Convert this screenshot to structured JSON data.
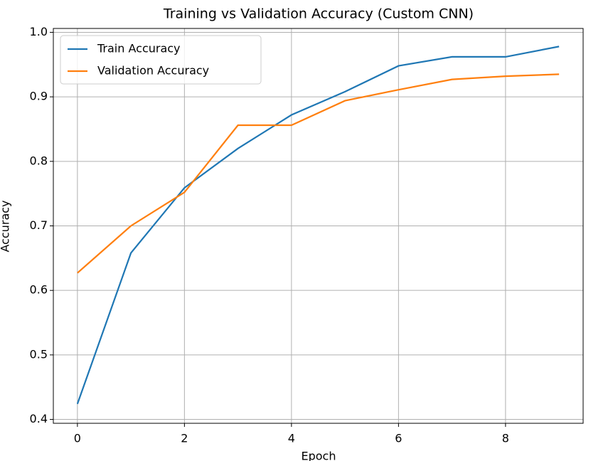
{
  "chart_data": {
    "type": "line",
    "title": "Training vs Validation Accuracy (Custom CNN)",
    "x_label": "Epoch",
    "y_label": "Accuracy",
    "x": [
      0,
      1,
      2,
      3,
      4,
      5,
      6,
      7,
      8,
      9
    ],
    "series": [
      {
        "name": "Train Accuracy",
        "color": "#1f77b4",
        "values": [
          0.424,
          0.658,
          0.759,
          0.82,
          0.872,
          0.908,
          0.948,
          0.962,
          0.962,
          0.978
        ]
      },
      {
        "name": "Validation Accuracy",
        "color": "#ff7f0e",
        "values": [
          0.627,
          0.7,
          0.752,
          0.856,
          0.856,
          0.894,
          0.911,
          0.927,
          0.932,
          0.935
        ]
      }
    ],
    "xlim": [
      -0.45,
      9.45
    ],
    "xticks": [
      0,
      2,
      4,
      6,
      8
    ],
    "ylim": [
      0.394,
      1.006
    ],
    "yticks": [
      0.4,
      0.5,
      0.6,
      0.7,
      0.8,
      0.9,
      {
        "value": 1,
        "label": "1.0"
      }
    ],
    "grid": true,
    "legend": "upper left"
  }
}
